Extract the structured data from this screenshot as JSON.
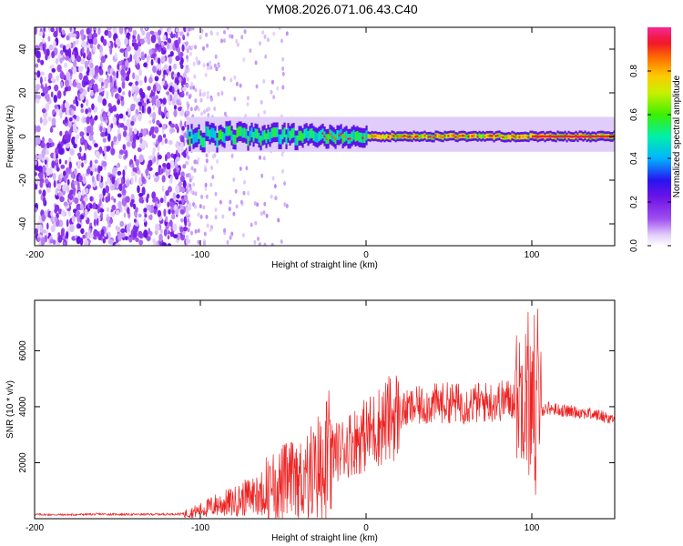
{
  "title": "YM08.2026.071.06.43.C40",
  "chart_data": [
    {
      "type": "heatmap",
      "title": "YM08.2026.071.06.43.C40",
      "xlabel": "Height of straight line (km)",
      "ylabel": "Frequency (Hz)",
      "xlim": [
        -200,
        150
      ],
      "ylim": [
        -50,
        50
      ],
      "xticks": [
        -200,
        -100,
        0,
        100
      ],
      "yticks": [
        40,
        20,
        0,
        -20,
        -40
      ],
      "colorbar": {
        "label": "Normalized spectral amplitude",
        "range": [
          0,
          1
        ],
        "ticks": [
          "0.0",
          "0.2",
          "0.4",
          "0.6",
          "0.8"
        ],
        "colormap": "rainbow (white-violet-blue-cyan-green-yellow-orange-red-magenta)"
      },
      "features": {
        "noise_region_km": [
          -200,
          -108
        ],
        "carrier_frequency_hz": 0,
        "carrier_band_hz_rough": [
          -4,
          6
        ],
        "carrier_peak_start_km": -108
      }
    },
    {
      "type": "line",
      "xlabel": "Height of straight line (km)",
      "ylabel": "SNR (10 * v/v)",
      "xlim": [
        -200,
        150
      ],
      "ylim": [
        0,
        7800
      ],
      "xticks": [
        -200,
        -100,
        0,
        100
      ],
      "yticks": [
        2000,
        4000,
        6000
      ],
      "color": "#ee2222",
      "series": [
        {
          "name": "SNR",
          "x": [
            -200,
            -180,
            -160,
            -140,
            -120,
            -110,
            -100,
            -90,
            -80,
            -70,
            -60,
            -50,
            -40,
            -35,
            -30,
            -25,
            -20,
            -10,
            0,
            10,
            20,
            30,
            40,
            50,
            60,
            70,
            80,
            90,
            95,
            100,
            104,
            106,
            110,
            120,
            130,
            140,
            150
          ],
          "values": [
            150,
            140,
            160,
            150,
            160,
            170,
            300,
            500,
            600,
            800,
            1000,
            1300,
            1400,
            1600,
            1800,
            2100,
            2300,
            2700,
            3000,
            3400,
            3800,
            4000,
            4100,
            4150,
            4100,
            4150,
            4200,
            4300,
            4600,
            4100,
            4200,
            3900,
            3950,
            3850,
            3800,
            3700,
            3550
          ]
        }
      ]
    }
  ]
}
